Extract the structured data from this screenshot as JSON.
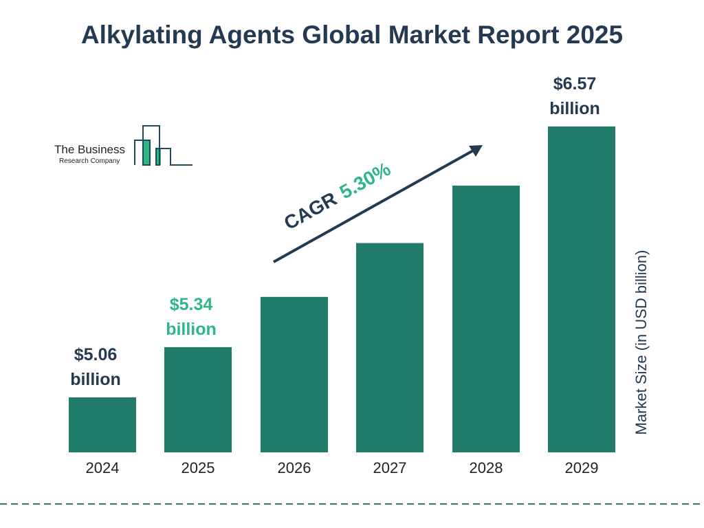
{
  "title": "Alkylating Agents Global Market Report 2025",
  "logo": {
    "line1": "The Business",
    "line2": "Research Company"
  },
  "cagr": {
    "label": "CAGR",
    "value": "5.30%"
  },
  "colors": {
    "bar": "#217b6b",
    "title": "#243a52",
    "highlight": "#2db784",
    "dash": "#2a7d6e"
  },
  "chart_data": {
    "type": "bar",
    "categories": [
      "2024",
      "2025",
      "2026",
      "2027",
      "2028",
      "2029"
    ],
    "values": [
      5.06,
      5.34,
      5.62,
      5.92,
      6.24,
      6.57
    ],
    "data_labels": [
      {
        "index": 0,
        "line1": "$5.06",
        "line2": "billion",
        "color": "#243a52"
      },
      {
        "index": 1,
        "line1": "$5.34",
        "line2": "billion",
        "color": "#2db784"
      },
      {
        "index": 5,
        "line1": "$6.57",
        "line2": "billion",
        "color": "#243a52"
      }
    ],
    "ylabel": "Market Size (in USD billion)",
    "xlabel": "",
    "grid": false
  }
}
